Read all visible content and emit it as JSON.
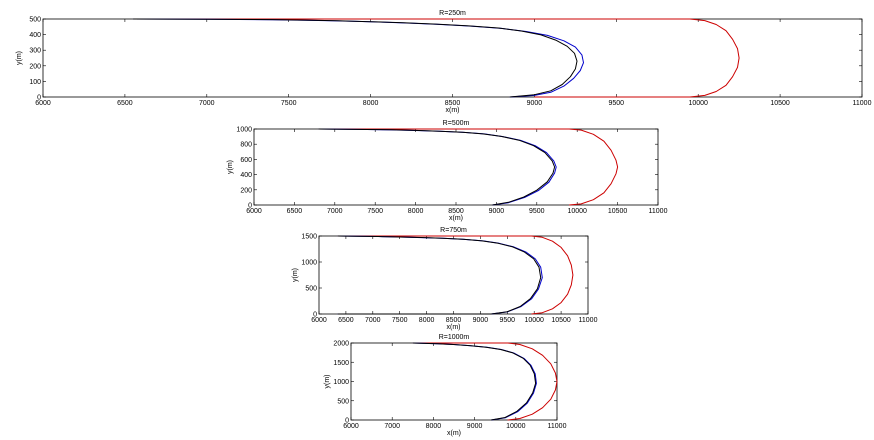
{
  "chart_data": [
    {
      "type": "line",
      "title": "R=250m",
      "xlabel": "x(m)",
      "ylabel": "y(m)",
      "xlim": [
        6000,
        11000
      ],
      "ylim": [
        0,
        500
      ],
      "xticks": [
        6000,
        6500,
        7000,
        7500,
        8000,
        8500,
        9000,
        9500,
        10000,
        10500,
        11000
      ],
      "yticks": [
        0,
        100,
        200,
        300,
        400,
        500
      ],
      "series": [
        {
          "color": "#cc0000",
          "x": [
            9000,
            9950,
            10040,
            10110,
            10170,
            10210,
            10240,
            10250,
            10240,
            10210,
            10170,
            10110,
            10040,
            9950,
            6550
          ],
          "y": [
            0,
            0,
            10,
            35,
            75,
            130,
            190,
            250,
            310,
            370,
            425,
            465,
            490,
            500,
            500
          ]
        },
        {
          "color": "#0000cc",
          "x": [
            8850,
            9000,
            9100,
            9180,
            9240,
            9280,
            9300,
            9290,
            9250,
            9180,
            9080,
            8950,
            8800,
            8600,
            8400,
            8200,
            8000,
            7800,
            7600,
            7400,
            7000,
            6550
          ],
          "y": [
            0,
            10,
            30,
            70,
            120,
            170,
            220,
            270,
            320,
            360,
            395,
            420,
            440,
            455,
            466,
            475,
            482,
            488,
            492,
            495,
            498,
            500
          ]
        },
        {
          "color": "#000000",
          "x": [
            8850,
            9000,
            9100,
            9170,
            9220,
            9250,
            9260,
            9245,
            9200,
            9130,
            9040,
            8920,
            8780,
            8600,
            8400,
            8200,
            8000,
            7800,
            7600,
            7400,
            7000,
            6550
          ],
          "y": [
            0,
            15,
            40,
            80,
            130,
            180,
            230,
            280,
            325,
            365,
            398,
            423,
            442,
            456,
            467,
            476,
            483,
            489,
            493,
            496,
            498,
            500
          ]
        }
      ]
    },
    {
      "type": "line",
      "title": "R=500m",
      "xlabel": "x(m)",
      "ylabel": "y(m)",
      "xlim": [
        6000,
        11000
      ],
      "ylim": [
        0,
        1000
      ],
      "xticks": [
        6000,
        6500,
        7000,
        7500,
        8000,
        8500,
        9000,
        9500,
        10000,
        10500,
        11000
      ],
      "yticks": [
        0,
        200,
        400,
        600,
        800,
        1000
      ],
      "series": [
        {
          "color": "#cc0000",
          "x": [
            9900,
            10050,
            10200,
            10330,
            10420,
            10480,
            10500,
            10480,
            10420,
            10330,
            10200,
            10050,
            9900,
            6800
          ],
          "y": [
            0,
            15,
            70,
            160,
            280,
            410,
            500,
            590,
            720,
            840,
            930,
            985,
            1000,
            1000
          ]
        },
        {
          "color": "#0000cc",
          "x": [
            8950,
            9150,
            9350,
            9520,
            9650,
            9720,
            9740,
            9710,
            9620,
            9480,
            9300,
            9080,
            8850,
            8600,
            8300,
            8000,
            7700,
            7400,
            7100,
            6800
          ],
          "y": [
            0,
            30,
            100,
            190,
            300,
            420,
            500,
            580,
            690,
            780,
            850,
            900,
            935,
            955,
            970,
            980,
            988,
            993,
            997,
            1000
          ]
        },
        {
          "color": "#000000",
          "x": [
            8950,
            9150,
            9340,
            9500,
            9630,
            9700,
            9720,
            9690,
            9600,
            9460,
            9280,
            9060,
            8830,
            8580,
            8300,
            8000,
            7700,
            7400,
            7100,
            6800
          ],
          "y": [
            0,
            35,
            105,
            195,
            305,
            420,
            500,
            580,
            690,
            780,
            852,
            902,
            936,
            957,
            971,
            981,
            989,
            994,
            997,
            1000
          ]
        }
      ]
    },
    {
      "type": "line",
      "title": "R=750m",
      "xlabel": "x(m)",
      "ylabel": "y(m)",
      "xlim": [
        6000,
        11000
      ],
      "ylim": [
        0,
        1500
      ],
      "xticks": [
        6000,
        6500,
        7000,
        7500,
        8000,
        8500,
        9000,
        9500,
        10000,
        10500,
        11000
      ],
      "yticks": [
        0,
        500,
        1000,
        1500
      ],
      "series": [
        {
          "color": "#cc0000",
          "x": [
            9950,
            10150,
            10340,
            10500,
            10620,
            10690,
            10720,
            10690,
            10620,
            10500,
            10340,
            10150,
            9950,
            6350
          ],
          "y": [
            0,
            25,
            100,
            220,
            380,
            560,
            750,
            940,
            1120,
            1280,
            1400,
            1475,
            1500,
            1500
          ]
        },
        {
          "color": "#0000cc",
          "x": [
            6350,
            9200,
            9500,
            9750,
            9950,
            10080,
            10150,
            10120,
            10020,
            9850,
            9620,
            9350,
            9050,
            8700,
            8300,
            7900,
            7500,
            7100,
            6700,
            6350
          ],
          "y": [
            0,
            0,
            40,
            140,
            290,
            480,
            700,
            900,
            1060,
            1190,
            1290,
            1360,
            1405,
            1435,
            1455,
            1470,
            1480,
            1490,
            1496,
            1500
          ]
        },
        {
          "color": "#000000",
          "x": [
            6350,
            9200,
            9500,
            9740,
            9930,
            10060,
            10120,
            10090,
            9990,
            9820,
            9600,
            9330,
            9030,
            8680,
            8300,
            7900,
            7500,
            7100,
            6700,
            6350
          ],
          "y": [
            0,
            0,
            45,
            145,
            295,
            485,
            700,
            900,
            1060,
            1190,
            1290,
            1360,
            1405,
            1436,
            1456,
            1471,
            1481,
            1490,
            1496,
            1500
          ]
        }
      ]
    },
    {
      "type": "line",
      "title": "R=1000m",
      "xlabel": "x(m)",
      "ylabel": "y(m)",
      "xlim": [
        6000,
        11000
      ],
      "ylim": [
        0,
        2000
      ],
      "xticks": [
        6000,
        7000,
        8000,
        9000,
        10000,
        11000
      ],
      "yticks": [
        0,
        500,
        1000,
        1500,
        2000
      ],
      "series": [
        {
          "color": "#cc0000",
          "x": [
            9800,
            10100,
            10400,
            10650,
            10850,
            10960,
            11000,
            10960,
            10850,
            10650,
            10400,
            10100,
            9800,
            7500
          ],
          "y": [
            0,
            40,
            150,
            320,
            540,
            780,
            1000,
            1220,
            1460,
            1680,
            1850,
            1960,
            2000,
            2000
          ]
        },
        {
          "color": "#0000cc",
          "x": [
            9400,
            9750,
            10050,
            10280,
            10430,
            10500,
            10470,
            10370,
            10200,
            9950,
            9650,
            9300,
            8900,
            8500,
            8100,
            7700,
            7500
          ],
          "y": [
            0,
            60,
            220,
            440,
            700,
            950,
            1200,
            1420,
            1600,
            1740,
            1830,
            1890,
            1930,
            1960,
            1980,
            1995,
            2000
          ]
        },
        {
          "color": "#000000",
          "x": [
            9400,
            9740,
            10030,
            10260,
            10410,
            10480,
            10450,
            10350,
            10180,
            9930,
            9630,
            9280,
            8880,
            8480,
            8100,
            7700,
            7500
          ],
          "y": [
            0,
            65,
            225,
            445,
            705,
            950,
            1200,
            1420,
            1602,
            1742,
            1832,
            1892,
            1932,
            1961,
            1981,
            1995,
            2000
          ]
        }
      ]
    }
  ]
}
